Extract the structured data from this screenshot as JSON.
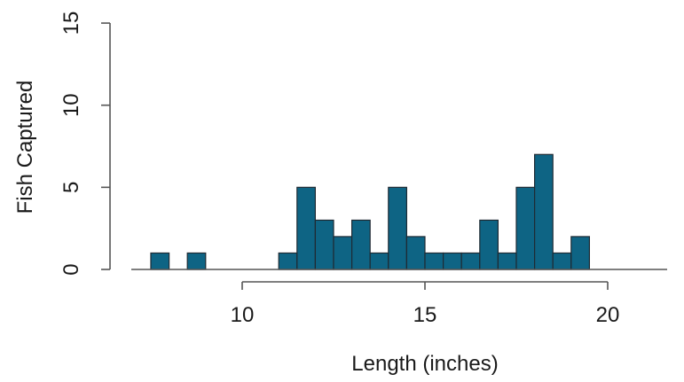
{
  "chart_data": {
    "type": "bar",
    "xlabel": "Length (inches)",
    "ylabel": "Fish Captured",
    "xlim": [
      7.5,
      21.5
    ],
    "ylim": [
      0,
      15
    ],
    "x_ticks": [
      10,
      15,
      20
    ],
    "y_ticks": [
      0,
      5,
      10,
      15
    ],
    "bin_width": 0.5,
    "bar_color": "#0e6484",
    "bins": [
      {
        "start": 7.5,
        "end": 8.0,
        "count": 1
      },
      {
        "start": 8.5,
        "end": 9.0,
        "count": 1
      },
      {
        "start": 11.0,
        "end": 11.5,
        "count": 1
      },
      {
        "start": 11.5,
        "end": 12.0,
        "count": 5
      },
      {
        "start": 12.0,
        "end": 12.5,
        "count": 3
      },
      {
        "start": 12.5,
        "end": 13.0,
        "count": 2
      },
      {
        "start": 13.0,
        "end": 13.5,
        "count": 3
      },
      {
        "start": 13.5,
        "end": 14.0,
        "count": 1
      },
      {
        "start": 14.0,
        "end": 14.5,
        "count": 5
      },
      {
        "start": 14.5,
        "end": 15.0,
        "count": 2
      },
      {
        "start": 15.0,
        "end": 15.5,
        "count": 1
      },
      {
        "start": 15.5,
        "end": 16.0,
        "count": 1
      },
      {
        "start": 16.0,
        "end": 16.5,
        "count": 1
      },
      {
        "start": 16.5,
        "end": 17.0,
        "count": 3
      },
      {
        "start": 17.0,
        "end": 17.5,
        "count": 1
      },
      {
        "start": 17.5,
        "end": 18.0,
        "count": 5
      },
      {
        "start": 18.0,
        "end": 18.5,
        "count": 7
      },
      {
        "start": 18.5,
        "end": 19.0,
        "count": 1
      },
      {
        "start": 19.0,
        "end": 19.5,
        "count": 2
      }
    ]
  }
}
